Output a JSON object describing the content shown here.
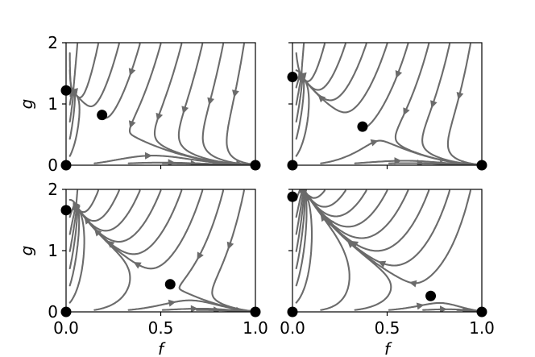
{
  "chart_data": [
    {
      "type": "streamplot",
      "panel": "top-left",
      "xlim": [
        0,
        1
      ],
      "ylim": [
        0,
        2
      ],
      "xticks": [],
      "yticks": [
        "0",
        "1",
        "2"
      ],
      "xlabel": "",
      "ylabel": "g",
      "grid": false,
      "fixed_points": [
        {
          "f": 0.0,
          "g": 0.0
        },
        {
          "f": 0.0,
          "g": 1.22
        },
        {
          "f": 0.19,
          "g": 0.82
        },
        {
          "f": 1.0,
          "g": 0.0
        }
      ]
    },
    {
      "type": "streamplot",
      "panel": "top-right",
      "xlim": [
        0,
        1
      ],
      "ylim": [
        0,
        2
      ],
      "xticks": [],
      "yticks": [],
      "xlabel": "",
      "ylabel": "",
      "grid": false,
      "fixed_points": [
        {
          "f": 0.0,
          "g": 0.0
        },
        {
          "f": 0.0,
          "g": 1.44
        },
        {
          "f": 0.37,
          "g": 0.63
        },
        {
          "f": 1.0,
          "g": 0.0
        }
      ]
    },
    {
      "type": "streamplot",
      "panel": "bottom-left",
      "xlim": [
        0,
        1
      ],
      "ylim": [
        0,
        2
      ],
      "xticks": [
        "0.0",
        "0.5",
        "1.0"
      ],
      "yticks": [
        "0",
        "1",
        "2"
      ],
      "xlabel": "f",
      "ylabel": "g",
      "grid": false,
      "fixed_points": [
        {
          "f": 0.0,
          "g": 0.0
        },
        {
          "f": 0.0,
          "g": 1.66
        },
        {
          "f": 0.55,
          "g": 0.45
        },
        {
          "f": 1.0,
          "g": 0.0
        }
      ]
    },
    {
      "type": "streamplot",
      "panel": "bottom-right",
      "xlim": [
        0,
        1
      ],
      "ylim": [
        0,
        2
      ],
      "xticks": [
        "0.0",
        "0.5",
        "1.0"
      ],
      "yticks": [],
      "xlabel": "f",
      "ylabel": "",
      "grid": false,
      "fixed_points": [
        {
          "f": 0.0,
          "g": 0.0
        },
        {
          "f": 0.0,
          "g": 1.88
        },
        {
          "f": 0.73,
          "g": 0.26
        },
        {
          "f": 1.0,
          "g": 0.0
        }
      ]
    }
  ]
}
